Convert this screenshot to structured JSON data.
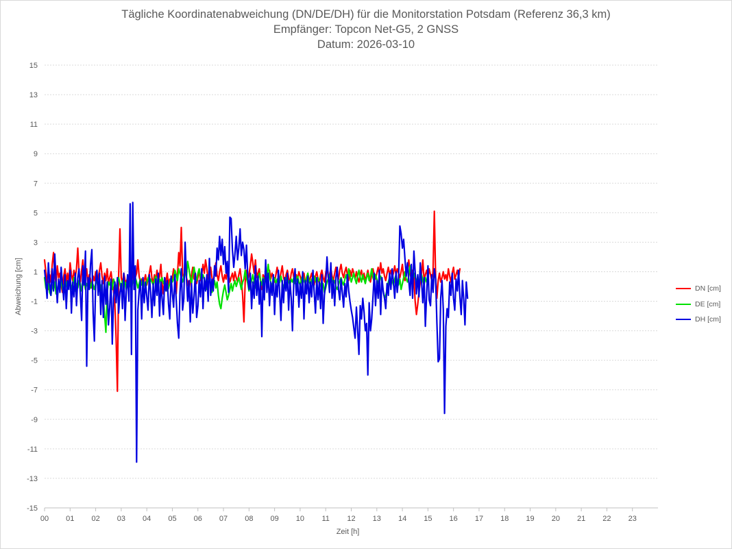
{
  "chart_data": {
    "type": "line",
    "title": "Tägliche Koordinatenabweichung (DN/DE/DH) für die Monitorstation Potsdam (Referenz 36,3 km)",
    "subtitle": "Empfänger: Topcon Net-G5, 2 GNSS",
    "date_line": "Datum: 2026-03-10",
    "xlabel": "Zeit [h]",
    "ylabel": "Abweichung [cm]",
    "xlim": [
      0,
      24
    ],
    "ylim": [
      -15,
      15
    ],
    "x_ticks": [
      "00",
      "01",
      "02",
      "03",
      "04",
      "05",
      "06",
      "07",
      "08",
      "09",
      "10",
      "11",
      "12",
      "13",
      "14",
      "15",
      "16",
      "17",
      "18",
      "19",
      "20",
      "21",
      "22",
      "23"
    ],
    "y_ticks": [
      15,
      13,
      11,
      9,
      7,
      5,
      3,
      1,
      -1,
      -3,
      -5,
      -7,
      -9,
      -11,
      -13,
      -15
    ],
    "grid": true,
    "legend_position": "right",
    "sample_interval_h": 0.05,
    "series": [
      {
        "name": "DN [cm]",
        "color": "#ff0000",
        "values": [
          1.8,
          1.0,
          0.4,
          -0.2,
          0.8,
          0.3,
          1.5,
          2.3,
          0.8,
          0.2,
          1.4,
          0.6,
          0.9,
          0.1,
          -0.4,
          0.7,
          1.2,
          0.3,
          0.9,
          0.2,
          1.6,
          0.8,
          0.4,
          1.1,
          0.6,
          1.2,
          2.6,
          0.9,
          0.3,
          1.1,
          1.8,
          0.4,
          0.6,
          1.2,
          0.2,
          0.8,
          0.5,
          -0.1,
          0.7,
          0.4,
          1.0,
          0.3,
          0.6,
          1.1,
          1.6,
          0.7,
          0.2,
          0.9,
          0.4,
          1.2,
          0.2,
          0.6,
          1.0,
          0.3,
          -0.3,
          -1.2,
          -3.5,
          -7.1,
          0.8,
          3.9,
          0.6,
          0.2,
          0.9,
          0.4,
          0.3,
          0.6,
          0.1,
          0.8,
          0.5,
          1.0,
          0.2,
          0.6,
          0.9,
          1.8,
          0.7,
          0.3,
          0.5,
          0.0,
          0.4,
          0.8,
          0.1,
          0.5,
          0.9,
          1.4,
          0.6,
          0.2,
          0.8,
          0.4,
          1.1,
          0.3,
          0.7,
          1.5,
          0.2,
          -0.5,
          0.6,
          0.3,
          0.9,
          0.1,
          0.5,
          0.2,
          0.6,
          1.2,
          0.4,
          -0.5,
          0.8,
          2.3,
          1.4,
          4.0,
          0.9,
          0.5,
          1.2,
          0.6,
          0.3,
          -0.2,
          0.4,
          0.8,
          1.3,
          0.5,
          0.9,
          0.2,
          0.6,
          1.1,
          0.4,
          0.8,
          1.5,
          0.9,
          1.8,
          1.2,
          0.5,
          0.8,
          1.3,
          0.6,
          0.2,
          0.9,
          1.6,
          0.8,
          0.4,
          1.0,
          1.4,
          0.7,
          0.3,
          0.8,
          0.5,
          1.2,
          0.9,
          0.3,
          0.6,
          0.9,
          0.4,
          1.0,
          0.6,
          0.3,
          0.8,
          1.2,
          0.5,
          -0.6,
          -2.4,
          0.3,
          1.1,
          0.5,
          0.8,
          1.4,
          2.2,
          1.6,
          0.9,
          1.8,
          0.6,
          0.9,
          1.2,
          0.4,
          -0.2,
          0.8,
          0.5,
          1.0,
          0.3,
          0.7,
          1.1,
          0.5,
          0.9,
          0.6,
          0.3,
          0.8,
          1.3,
          0.7,
          0.5,
          0.9,
          1.4,
          0.6,
          0.3,
          0.8,
          1.1,
          0.6,
          0.2,
          0.9,
          1.2,
          0.6,
          0.3,
          0.8,
          0.5,
          1.0,
          0.7,
          0.3,
          0.6,
          0.9,
          0.2,
          0.5,
          0.8,
          0.3,
          0.6,
          0.9,
          0.4,
          0.1,
          0.7,
          1.0,
          0.5,
          0.2,
          0.8,
          1.1,
          0.6,
          0.3,
          0.9,
          1.4,
          0.6,
          0.8,
          1.2,
          0.7,
          0.4,
          0.9,
          1.3,
          0.8,
          0.5,
          1.1,
          1.5,
          0.9,
          0.6,
          1.0,
          1.3,
          0.8,
          0.4,
          1.1,
          0.7,
          1.2,
          0.9,
          0.5,
          1.0,
          0.6,
          0.3,
          0.8,
          1.1,
          0.5,
          0.9,
          0.4,
          0.7,
          1.1,
          0.6,
          0.3,
          0.8,
          1.2,
          0.7,
          0.5,
          0.9,
          1.3,
          0.8,
          1.6,
          0.9,
          1.2,
          0.7,
          0.4,
          0.9,
          1.3,
          0.8,
          1.1,
          0.6,
          0.9,
          1.4,
          0.8,
          1.2,
          0.9,
          0.6,
          1.0,
          1.5,
          0.7,
          0.4,
          0.9,
          1.2,
          1.8,
          0.9,
          0.5,
          1.1,
          0.6,
          -1.0,
          -1.9,
          -1.2,
          -0.4,
          0.3,
          0.9,
          1.8,
          0.4,
          0.8,
          1.1,
          0.6,
          1.2,
          0.8,
          0.4,
          1.0,
          5.1,
          0.6,
          -0.8,
          0.4,
          0.9,
          0.3,
          0.6,
          1.0,
          0.5,
          0.8,
          0.4,
          1.2,
          0.7,
          0.3,
          0.9,
          1.3,
          0.5,
          0.8,
          1.1,
          0.6,
          1.2
        ],
        "name_key": "DN"
      },
      {
        "name": "DE [cm]",
        "color": "#00e000",
        "values": [
          0.6,
          -0.1,
          -0.3,
          0.2,
          -0.4,
          -0.6,
          0.1,
          -0.2,
          0.3,
          -0.5,
          -0.3,
          0.2,
          -0.1,
          0.4,
          -0.2,
          0.1,
          -0.4,
          0.3,
          -0.1,
          0.2,
          0.5,
          -0.2,
          0.1,
          0.6,
          -0.3,
          0.2,
          -0.1,
          0.4,
          0.2,
          -0.3,
          0.1,
          0.3,
          -0.2,
          0.2,
          0.0,
          0.4,
          -0.1,
          0.3,
          0.1,
          -0.2,
          0.2,
          0.4,
          -0.2,
          -0.3,
          0.1,
          -0.5,
          -0.9,
          -1.9,
          -3.1,
          -0.4,
          0.3,
          0.1,
          0.4,
          -0.2,
          0.5,
          0.2,
          -0.1,
          0.3,
          0.6,
          0.2,
          -0.3,
          0.4,
          0.1,
          0.3,
          -0.2,
          0.2,
          0.5,
          0.1,
          -0.2,
          0.4,
          0.2,
          0.6,
          0.3,
          -0.1,
          0.2,
          0.5,
          0.1,
          0.4,
          0.2,
          -0.1,
          0.3,
          0.6,
          0.2,
          0.5,
          0.3,
          0.1,
          0.4,
          0.7,
          0.2,
          0.0,
          0.5,
          0.3,
          0.6,
          0.2,
          0.4,
          0.1,
          -0.3,
          -0.1,
          0.2,
          0.6,
          0.3,
          0.5,
          1.1,
          0.8,
          0.4,
          1.2,
          0.9,
          0.6,
          0.3,
          0.7,
          1.0,
          0.6,
          1.7,
          1.2,
          0.6,
          0.2,
          0.8,
          1.3,
          0.7,
          0.4,
          0.9,
          1.2,
          0.6,
          0.3,
          0.8,
          0.5,
          0.2,
          -0.2,
          0.3,
          0.6,
          0.1,
          -0.4,
          0.0,
          0.4,
          -0.1,
          0.3,
          -0.6,
          -1.2,
          -1.5,
          -0.8,
          -0.3,
          0.1,
          -0.4,
          -0.9,
          -0.6,
          -0.2,
          0.2,
          -0.3,
          0.1,
          0.4,
          0.0,
          0.3,
          0.6,
          0.2,
          -0.2,
          0.3,
          0.5,
          1.1,
          0.6,
          0.2,
          -0.3,
          0.1,
          0.4,
          0.8,
          0.3,
          -0.1,
          0.2,
          0.5,
          0.9,
          0.4,
          0.1,
          0.6,
          0.2,
          0.4,
          0.8,
          1.5,
          0.7,
          0.3,
          0.0,
          0.4,
          0.6,
          0.2,
          0.5,
          0.1,
          0.3,
          0.7,
          0.2,
          -0.1,
          0.3,
          0.6,
          0.2,
          0.4,
          0.1,
          0.5,
          0.3,
          0.6,
          0.2,
          0.4,
          0.7,
          0.3,
          0.1,
          0.5,
          0.8,
          0.4,
          0.2,
          0.6,
          0.9,
          0.4,
          0.1,
          0.5,
          0.3,
          0.7,
          0.4,
          0.2,
          0.6,
          0.3,
          0.1,
          -0.2,
          0.2,
          -0.4,
          -0.1,
          0.3,
          0.5,
          0.8,
          0.3,
          0.6,
          0.2,
          0.4,
          0.0,
          -0.2,
          0.1,
          0.4,
          0.6,
          0.3,
          0.1,
          0.5,
          0.8,
          0.4,
          1.2,
          0.7,
          0.3,
          0.6,
          0.9,
          0.5,
          0.2,
          0.7,
          1.1,
          0.6,
          0.3,
          0.8,
          0.5,
          0.2,
          0.6,
          0.9,
          0.4,
          0.7,
          1.2,
          0.6,
          0.3,
          0.8,
          0.5,
          0.2,
          0.4,
          0.7,
          0.3,
          -0.3,
          -0.8,
          -0.6,
          -0.2,
          0.3,
          0.6,
          0.2,
          0.4,
          0.1,
          0.5,
          0.8,
          0.3,
          0.1,
          0.5,
          -0.2,
          0.2,
          0.6,
          1.0,
          0.5,
          0.3,
          0.7,
          1.4,
          0.8,
          0.4,
          0.9,
          0.6,
          0.3,
          0.7,
          0.2,
          0.5,
          0.8,
          0.4,
          0.1,
          0.6,
          0.3
        ],
        "name_key": "DE"
      },
      {
        "name": "DH [cm]",
        "color": "#0000e0",
        "values": [
          1.1,
          0.3,
          -0.8,
          1.6,
          0.2,
          -0.6,
          1.2,
          -0.3,
          2.2,
          0.4,
          -1.1,
          0.5,
          -0.4,
          1.3,
          0.2,
          -0.9,
          0.8,
          -1.5,
          0.4,
          -0.2,
          1.1,
          -1.8,
          0.3,
          -0.7,
          0.9,
          -1.3,
          0.6,
          1.2,
          -0.5,
          -2.3,
          1.4,
          0.1,
          2.4,
          -5.4,
          0.6,
          -0.2,
          1.5,
          2.5,
          -1.8,
          -3.7,
          0.3,
          1.1,
          -0.6,
          0.9,
          -1.9,
          0.4,
          -2.1,
          0.7,
          -1.2,
          0.3,
          -2.6,
          -1.4,
          0.5,
          -3.9,
          -0.8,
          0.3,
          -1.1,
          0.6,
          -1.8,
          -0.4,
          0.2,
          -1.5,
          0.9,
          -2.3,
          -0.3,
          0.8,
          -1.0,
          5.6,
          -4.6,
          5.7,
          -0.2,
          1.4,
          -11.9,
          -1.6,
          -0.3,
          0.4,
          -2.2,
          0.6,
          -1.1,
          0.3,
          -0.7,
          -1.6,
          0.8,
          -0.4,
          -2.1,
          0.2,
          -1.3,
          0.5,
          -0.6,
          0.9,
          -2.0,
          0.3,
          -0.8,
          -1.9,
          0.6,
          -0.3,
          0.4,
          -1.2,
          -2.2,
          0.7,
          -0.5,
          -1.4,
          0.8,
          -0.9,
          -2.5,
          -3.5,
          -0.4,
          1.2,
          -1.6,
          -0.8,
          3.0,
          0.6,
          -1.0,
          0.4,
          -2.4,
          0.2,
          -1.8,
          -0.6,
          0.9,
          -2.1,
          -1.3,
          0.4,
          -0.7,
          1.2,
          -1.5,
          0.6,
          -0.3,
          0.8,
          -1.0,
          1.9,
          -0.6,
          0.5,
          -0.3,
          1.4,
          0.7,
          2.6,
          1.8,
          3.4,
          2.1,
          3.2,
          1.5,
          2.7,
          0.9,
          1.7,
          -0.4,
          4.7,
          4.6,
          2.5,
          1.3,
          2.2,
          3.4,
          1.8,
          2.6,
          3.9,
          2.1,
          3.0,
          2.5,
          1.2,
          2.8,
          0.6,
          -0.2,
          0.9,
          -1.5,
          0.3,
          -0.8,
          1.4,
          -0.6,
          0.7,
          -1.2,
          0.3,
          -3.4,
          0.5,
          -0.9,
          1.8,
          -0.4,
          0.9,
          -1.3,
          0.3,
          -0.6,
          0.8,
          -1.9,
          0.2,
          -0.7,
          1.1,
          -0.5,
          -2.3,
          0.4,
          -1.1,
          0.6,
          -0.3,
          0.9,
          -1.6,
          0.4,
          -0.8,
          -3.0,
          0.3,
          1.2,
          -0.6,
          0.5,
          -1.4,
          0.2,
          -0.8,
          1.0,
          -2.2,
          0.4,
          -0.5,
          0.7,
          -1.1,
          0.3,
          -0.7,
          1.1,
          -0.4,
          -1.8,
          0.6,
          -0.9,
          0.3,
          -1.5,
          0.8,
          -2.5,
          -0.6,
          0.2,
          2.0,
          0.7,
          -0.4,
          1.6,
          -0.8,
          0.4,
          -1.3,
          0.6,
          1.3,
          -0.2,
          -0.9,
          0.5,
          -0.4,
          -1.4,
          0.2,
          -0.7,
          0.8,
          -0.3,
          -1.0,
          -1.6,
          -2.1,
          -2.8,
          -3.5,
          -1.4,
          -2.9,
          -4.6,
          -1.3,
          -2.2,
          -0.8,
          -1.7,
          -3.0,
          -2.5,
          -6.0,
          -1.1,
          -3.0,
          -2.2,
          -0.7,
          0.9,
          -1.3,
          0.4,
          -0.8,
          1.1,
          -1.9,
          0.6,
          -0.3,
          -0.8,
          -1.5,
          0.2,
          -0.6,
          0.9,
          -0.2,
          1.2,
          0.3,
          -0.8,
          1.0,
          -0.4,
          0.6,
          4.1,
          3.6,
          2.6,
          3.2,
          1.9,
          0.7,
          1.6,
          0.4,
          -0.6,
          1.5,
          -0.8,
          2.4,
          1.0,
          -0.5,
          0.8,
          -0.7,
          1.6,
          0.3,
          -1.1,
          0.6,
          -2.7,
          -0.5,
          1.4,
          -0.9,
          -1.3,
          0.8,
          -0.4,
          1.2,
          0.5,
          -2.4,
          -5.1,
          -4.9,
          -0.8,
          0.4,
          -1.6,
          -8.6,
          -2.7,
          -1.5,
          -2.1,
          0.3,
          -0.6,
          0.9,
          -0.8,
          -1.6,
          0.5,
          -0.3,
          1.1,
          -0.7,
          -1.9,
          0.4,
          -0.9,
          -2.6,
          0.3,
          -0.8
        ]
      }
    ]
  }
}
